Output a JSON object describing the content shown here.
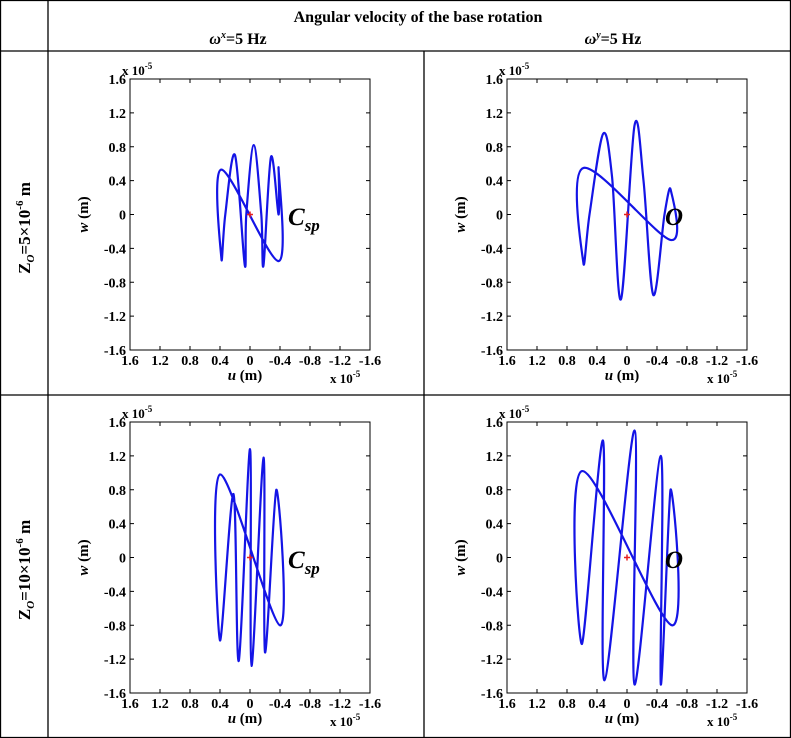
{
  "header": {
    "title": "Angular velocity of the base rotation",
    "col1_sym": "ω",
    "col1_sup": "x",
    "col1_rest": "=5 Hz",
    "col2_sym": "ω",
    "col2_sup": "y",
    "col2_rest": "=5 Hz"
  },
  "rows": [
    {
      "pre": "Z",
      "sub": "O",
      "mid": "=5×10",
      "sup": "-6",
      "post": " m"
    },
    {
      "pre": "Z",
      "sub": "O",
      "mid": "=10×10",
      "sup": "-6",
      "post": " m"
    }
  ],
  "colors": {
    "trajectory": "#1414e6",
    "marker": "#e62020",
    "border": "#000000"
  },
  "chart_data": [
    {
      "type": "line",
      "xlabel": "u (m)",
      "ylabel": "w (m)",
      "xlim": [
        1.6,
        -1.6
      ],
      "ylim": [
        -1.6,
        1.6
      ],
      "x_reversed": true,
      "scale": "x 10^-5",
      "xticks": [
        "1.6",
        "1.2",
        "0.8",
        "0.4",
        "0",
        "-0.4",
        "-0.8",
        "-1.2",
        "-1.6"
      ],
      "yticks": [
        "1.6",
        "1.2",
        "0.8",
        "0.4",
        "0",
        "-0.4",
        "-0.8",
        "-1.2",
        "-1.6"
      ],
      "annotation": {
        "main": "C",
        "sub": "sp"
      },
      "series": [
        {
          "values": [
            [
              0.38,
              0.53
            ],
            [
              0.38,
              -0.53
            ],
            [
              0.33,
              0
            ],
            [
              0.2,
              0.7
            ],
            [
              0.07,
              -0.6
            ],
            [
              0.05,
              0
            ],
            [
              -0.05,
              0.82
            ],
            [
              -0.15,
              0
            ],
            [
              -0.18,
              -0.6
            ],
            [
              -0.28,
              0.68
            ],
            [
              -0.38,
              0
            ],
            [
              -0.38,
              0.55
            ],
            [
              -0.38,
              -0.55
            ]
          ]
        }
      ],
      "center": [
        0,
        0
      ]
    },
    {
      "type": "line",
      "xlabel": "u (m)",
      "ylabel": "w (m)",
      "xlim": [
        1.6,
        -1.6
      ],
      "ylim": [
        -1.6,
        1.6
      ],
      "x_reversed": true,
      "scale": "x 10^-5",
      "xticks": [
        "1.6",
        "1.2",
        "0.8",
        "0.4",
        "0",
        "-0.4",
        "-0.8",
        "-1.2",
        "-1.6"
      ],
      "yticks": [
        "1.6",
        "1.2",
        "0.8",
        "0.4",
        "0",
        "-0.4",
        "-0.8",
        "-1.2",
        "-1.6"
      ],
      "annotation": {
        "main": "O",
        "sub": ""
      },
      "series": [
        {
          "values": [
            [
              0.58,
              0.55
            ],
            [
              0.58,
              -0.58
            ],
            [
              0.5,
              0
            ],
            [
              0.32,
              0.95
            ],
            [
              0.2,
              0.45
            ],
            [
              0.08,
              -1.0
            ],
            [
              -0.1,
              1.05
            ],
            [
              -0.22,
              0.4
            ],
            [
              -0.35,
              -0.95
            ],
            [
              -0.5,
              0
            ],
            [
              -0.58,
              0.3
            ],
            [
              -0.58,
              -0.3
            ]
          ]
        }
      ],
      "center": [
        0,
        0
      ]
    },
    {
      "type": "line",
      "xlabel": "u (m)",
      "ylabel": "w (m)",
      "xlim": [
        1.6,
        -1.6
      ],
      "ylim": [
        -1.6,
        1.6
      ],
      "x_reversed": true,
      "scale": "x 10^-5",
      "xticks": [
        "1.6",
        "1.2",
        "0.8",
        "0.4",
        "0",
        "-0.4",
        "-0.8",
        "-1.2",
        "-1.6"
      ],
      "yticks": [
        "1.6",
        "1.2",
        "0.8",
        "0.4",
        "0",
        "-0.4",
        "-0.8",
        "-1.2",
        "-1.6"
      ],
      "annotation": {
        "main": "C",
        "sub": "sp"
      },
      "series": [
        {
          "values": [
            [
              0.4,
              0.98
            ],
            [
              0.4,
              -0.98
            ],
            [
              0.22,
              0.75
            ],
            [
              0.15,
              -1.22
            ],
            [
              0.0,
              1.28
            ],
            [
              -0.02,
              -1.28
            ],
            [
              -0.18,
              1.18
            ],
            [
              -0.2,
              -1.12
            ],
            [
              -0.35,
              0.8
            ],
            [
              -0.4,
              -0.8
            ]
          ]
        }
      ],
      "center": [
        0,
        0
      ]
    },
    {
      "type": "line",
      "xlabel": "u (m)",
      "ylabel": "w (m)",
      "xlim": [
        1.6,
        -1.6
      ],
      "ylim": [
        -1.6,
        1.6
      ],
      "x_reversed": true,
      "scale": "x 10^-5",
      "xticks": [
        "1.6",
        "1.2",
        "0.8",
        "0.4",
        "0",
        "-0.4",
        "-0.8",
        "-1.2",
        "-1.6"
      ],
      "yticks": [
        "1.6",
        "1.2",
        "0.8",
        "0.4",
        "0",
        "-0.4",
        "-0.8",
        "-1.2",
        "-1.6"
      ],
      "annotation": {
        "main": "O",
        "sub": ""
      },
      "series": [
        {
          "values": [
            [
              0.6,
              1.02
            ],
            [
              0.6,
              -1.02
            ],
            [
              0.32,
              1.38
            ],
            [
              0.3,
              -1.45
            ],
            [
              -0.1,
              1.5
            ],
            [
              -0.1,
              -1.5
            ],
            [
              -0.45,
              1.2
            ],
            [
              -0.45,
              -1.5
            ],
            [
              -0.58,
              0.8
            ],
            [
              -0.6,
              -0.8
            ]
          ]
        }
      ],
      "center": [
        0,
        0
      ]
    }
  ]
}
